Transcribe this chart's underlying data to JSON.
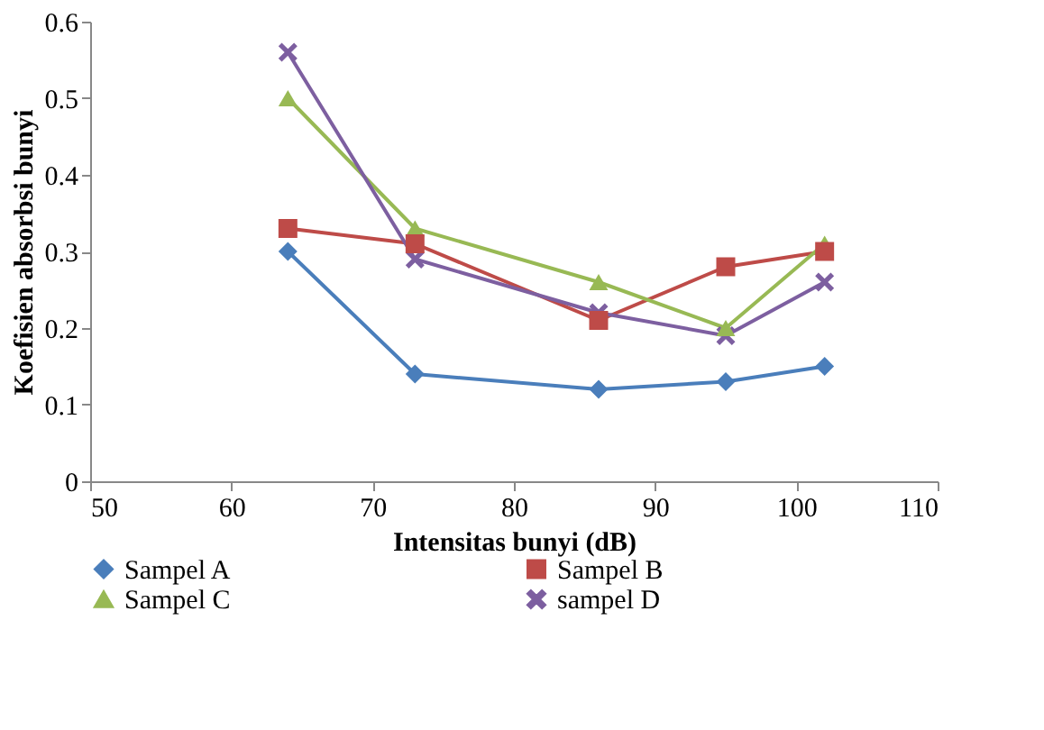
{
  "chart_data": {
    "type": "line",
    "xlabel": "Intensitas bunyi (dB)",
    "ylabel": "Koefisien absorbsi bunyi",
    "x": [
      64,
      73,
      86,
      95,
      102
    ],
    "series": [
      {
        "name": "Sampel A",
        "color": "#4a7ebb",
        "marker": "diamond",
        "values": [
          0.3,
          0.14,
          0.12,
          0.13,
          0.15
        ]
      },
      {
        "name": "Sampel B",
        "color": "#be4b48",
        "marker": "square",
        "values": [
          0.33,
          0.31,
          0.21,
          0.28,
          0.3
        ]
      },
      {
        "name": "Sampel C",
        "color": "#98b954",
        "marker": "triangle",
        "values": [
          0.5,
          0.33,
          0.26,
          0.2,
          0.31
        ]
      },
      {
        "name": "sampel D",
        "color": "#7d5fa0",
        "marker": "cross",
        "values": [
          0.56,
          0.29,
          0.22,
          0.19,
          0.26
        ]
      }
    ],
    "xlim": [
      50,
      110
    ],
    "xticks": [
      50,
      60,
      70,
      80,
      90,
      100,
      110
    ],
    "ylim": [
      0,
      0.6
    ],
    "yticks": [
      0,
      0.1,
      0.2,
      0.3,
      0.4,
      0.5,
      0.6
    ],
    "grid": false,
    "legend": "bottom"
  }
}
